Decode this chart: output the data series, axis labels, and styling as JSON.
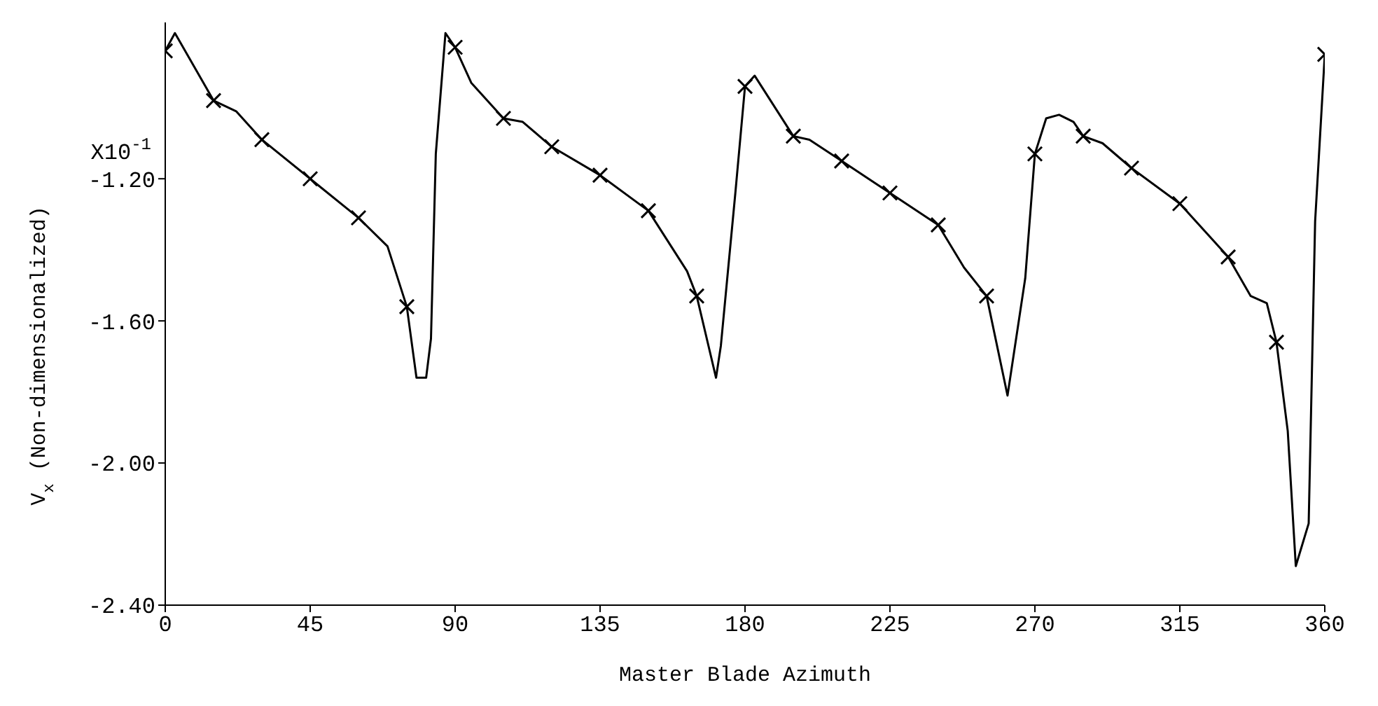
{
  "chart_data": {
    "type": "line",
    "xlabel": "Master Blade Azimuth",
    "ylabel": "V$_{x}$ (Non-dimensionalized)",
    "annotations": [
      "X10$^{-1}$"
    ],
    "xlim": [
      0,
      360
    ],
    "xticks": [
      0,
      45,
      90,
      135,
      180,
      225,
      270,
      315,
      360
    ],
    "ylim": [
      -2.4,
      -0.76
    ],
    "yticks": [
      {
        "value": -2.4,
        "label": "-2.40"
      },
      {
        "value": -2.0,
        "label": "-2.00"
      },
      {
        "value": -1.6,
        "label": "-1.60"
      },
      {
        "value": -1.2,
        "label": "-1.20"
      }
    ],
    "grid": false,
    "series": [
      {
        "color": "#000000",
        "marker": "none",
        "x": [
          0,
          3,
          15,
          22,
          30,
          45,
          60,
          69,
          75,
          78,
          81,
          82.5,
          84,
          87,
          90,
          95,
          105,
          111,
          120,
          135,
          150,
          162,
          165,
          171,
          172.5,
          177,
          180,
          183,
          195,
          200,
          210,
          225,
          240,
          248,
          255,
          261.5,
          267,
          270,
          273.5,
          277.5,
          282,
          285,
          291,
          300,
          315,
          330,
          337,
          342,
          345,
          348.5,
          351,
          355,
          357,
          360
        ],
        "values": [
          -0.84,
          -0.79,
          -0.98,
          -1.01,
          -1.09,
          -1.2,
          -1.31,
          -1.39,
          -1.56,
          -1.76,
          -1.76,
          -1.65,
          -1.13,
          -0.79,
          -0.83,
          -0.93,
          -1.03,
          -1.04,
          -1.11,
          -1.19,
          -1.29,
          -1.46,
          -1.53,
          -1.76,
          -1.67,
          -1.24,
          -0.94,
          -0.91,
          -1.08,
          -1.09,
          -1.15,
          -1.24,
          -1.33,
          -1.45,
          -1.53,
          -1.81,
          -1.48,
          -1.13,
          -1.03,
          -1.02,
          -1.04,
          -1.08,
          -1.1,
          -1.17,
          -1.27,
          -1.42,
          -1.53,
          -1.55,
          -1.66,
          -1.91,
          -2.29,
          -2.17,
          -1.32,
          -0.85
        ]
      },
      {
        "type": "scatter",
        "color": "#000000",
        "marker": "cross",
        "x": [
          0,
          15,
          30,
          45,
          60,
          75,
          90,
          105,
          120,
          135,
          150,
          165,
          180,
          195,
          210,
          225,
          240,
          255,
          270,
          285,
          300,
          315,
          330,
          345,
          360
        ],
        "values": [
          -0.84,
          -0.98,
          -1.09,
          -1.2,
          -1.31,
          -1.56,
          -0.83,
          -1.03,
          -1.11,
          -1.19,
          -1.29,
          -1.53,
          -0.94,
          -1.08,
          -1.15,
          -1.24,
          -1.33,
          -1.53,
          -1.13,
          -1.08,
          -1.17,
          -1.27,
          -1.42,
          -1.66,
          -0.85
        ]
      }
    ]
  }
}
